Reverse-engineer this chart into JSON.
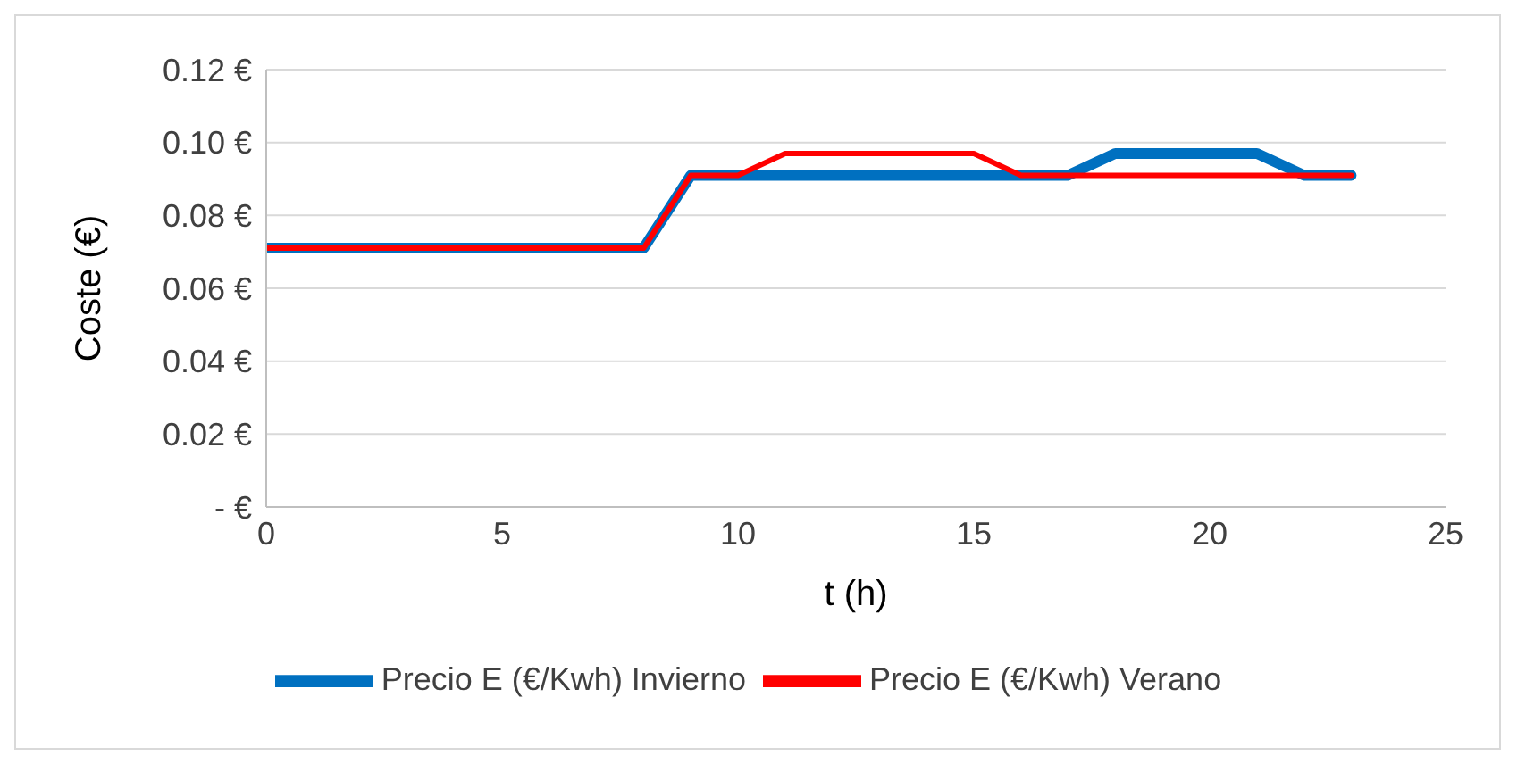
{
  "chart_data": {
    "type": "line",
    "xlabel": "t (h)",
    "ylabel": "Coste (€)",
    "x": [
      0,
      1,
      2,
      3,
      4,
      5,
      6,
      7,
      8,
      9,
      10,
      11,
      12,
      13,
      14,
      15,
      16,
      17,
      18,
      19,
      20,
      21,
      22,
      23
    ],
    "series": [
      {
        "name": "Precio E (€/Kwh) Invierno",
        "color": "#0070c0",
        "values": [
          0.071,
          0.071,
          0.071,
          0.071,
          0.071,
          0.071,
          0.071,
          0.071,
          0.071,
          0.091,
          0.091,
          0.091,
          0.091,
          0.091,
          0.091,
          0.091,
          0.091,
          0.091,
          0.097,
          0.097,
          0.097,
          0.097,
          0.091,
          0.091
        ]
      },
      {
        "name": "Precio E (€/Kwh) Verano",
        "color": "#ff0000",
        "values": [
          0.071,
          0.071,
          0.071,
          0.071,
          0.071,
          0.071,
          0.071,
          0.071,
          0.071,
          0.091,
          0.091,
          0.097,
          0.097,
          0.097,
          0.097,
          0.097,
          0.091,
          0.091,
          0.091,
          0.091,
          0.091,
          0.091,
          0.091,
          0.091
        ]
      }
    ],
    "xlim": [
      0,
      25
    ],
    "xticks": [
      0,
      5,
      10,
      15,
      20,
      25
    ],
    "ylim": [
      0,
      0.12
    ],
    "yticks": [
      {
        "value": 0,
        "label": "-   €"
      },
      {
        "value": 0.02,
        "label": "0.02 €"
      },
      {
        "value": 0.04,
        "label": "0.04 €"
      },
      {
        "value": 0.06,
        "label": "0.06 €"
      },
      {
        "value": 0.08,
        "label": "0.08 €"
      },
      {
        "value": 0.1,
        "label": "0.10 €"
      },
      {
        "value": 0.12,
        "label": "0.12 €"
      }
    ],
    "grid": "y",
    "legend": "bottom",
    "marker": "none",
    "line_style": "solid"
  }
}
